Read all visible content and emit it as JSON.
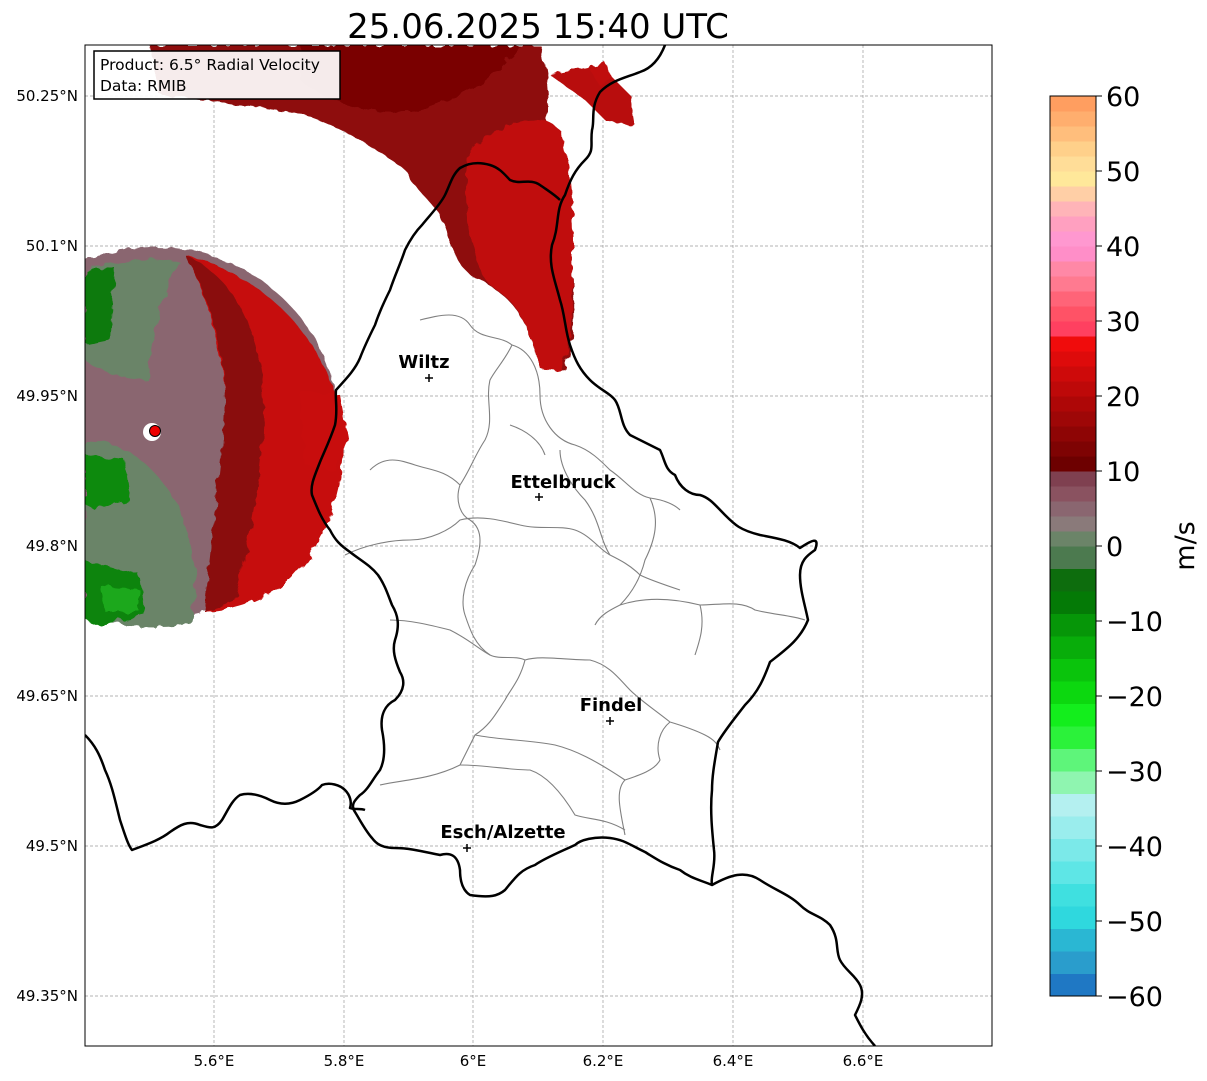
{
  "map": {
    "title": "25.06.2025 15:40 UTC",
    "info_box": {
      "product": "Product: 6.5° Radial Velocity",
      "source": "Data: RMIB"
    },
    "lon_ticks": [
      "5.6°E",
      "5.8°E",
      "6°E",
      "6.2°E",
      "6.4°E",
      "6.6°E"
    ],
    "lat_ticks": [
      "50.25°N",
      "50.1°N",
      "49.95°N",
      "49.8°N",
      "49.65°N",
      "49.5°N",
      "49.35°N"
    ],
    "cities": [
      {
        "name": "Wiltz",
        "lon": 5.93,
        "lat": 49.966
      },
      {
        "name": "Ettelbruck",
        "lon": 6.104,
        "lat": 49.846
      },
      {
        "name": "Findel",
        "lon": 6.21,
        "lat": 49.623
      },
      {
        "name": "Esch/Alzette",
        "lon": 5.99,
        "lat": 49.496
      }
    ],
    "radar_site": {
      "lon": 5.505,
      "lat": 49.915,
      "marker_color": "#ee0000"
    }
  },
  "colorbar": {
    "label": "m/s",
    "ticks": [
      "60",
      "50",
      "40",
      "30",
      "20",
      "10",
      "0",
      "−10",
      "−20",
      "−30",
      "−40",
      "−50",
      "−60"
    ],
    "range": [
      -60,
      60
    ]
  }
}
